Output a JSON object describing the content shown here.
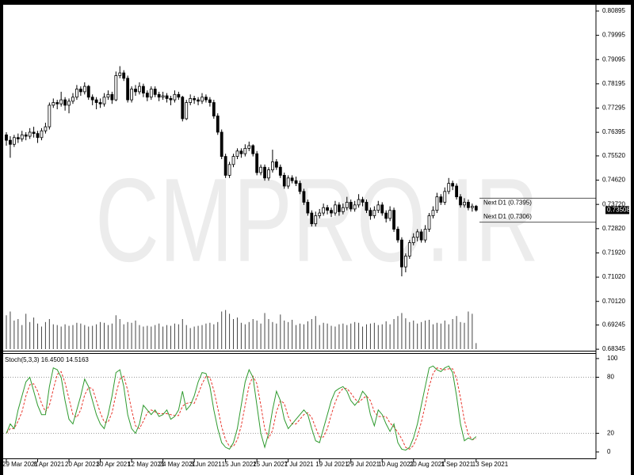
{
  "chart_data": [
    {
      "type": "candlestick",
      "watermark": "CMPRO.IR",
      "categories": [
        "29 Mar 2021",
        null,
        null,
        null,
        null,
        null,
        null,
        null,
        "8 Apr 2021",
        null,
        null,
        null,
        null,
        null,
        null,
        null,
        "20 Apr 2021",
        null,
        null,
        null,
        null,
        null,
        null,
        null,
        "30 Apr 2021",
        null,
        null,
        null,
        null,
        null,
        null,
        null,
        "12 May 2021",
        null,
        null,
        null,
        null,
        null,
        null,
        null,
        "24 May 2021",
        null,
        null,
        null,
        null,
        null,
        null,
        null,
        "3 Jun 2021",
        null,
        null,
        null,
        null,
        null,
        null,
        null,
        "15 Jun 2021",
        null,
        null,
        null,
        null,
        null,
        null,
        null,
        "25 Jun 2021",
        null,
        null,
        null,
        null,
        null,
        null,
        null,
        "7 Jul 2021",
        null,
        null,
        null,
        null,
        null,
        null,
        null,
        "19 Jul 2021",
        null,
        null,
        null,
        null,
        null,
        null,
        null,
        "29 Jul 2021",
        null,
        null,
        null,
        null,
        null,
        null,
        null,
        "10 Aug 2021",
        null,
        null,
        null,
        null,
        null,
        null,
        null,
        "20 Aug 2021",
        null,
        null,
        null,
        null,
        null,
        null,
        null,
        "1 Sep 2021",
        null,
        null,
        null,
        null,
        null,
        null,
        null,
        "13 Sep 2021"
      ],
      "candles": [
        [
          0.763,
          0.764,
          0.759,
          0.761
        ],
        [
          0.761,
          0.7625,
          0.7545,
          0.7595
        ],
        [
          0.7595,
          0.763,
          0.7585,
          0.762
        ],
        [
          0.762,
          0.7635,
          0.76,
          0.7615
        ],
        [
          0.7615,
          0.7645,
          0.7605,
          0.763
        ],
        [
          0.763,
          0.764,
          0.761,
          0.7625
        ],
        [
          0.7625,
          0.7655,
          0.7615,
          0.764
        ],
        [
          0.764,
          0.766,
          0.762,
          0.7635
        ],
        [
          0.7635,
          0.7645,
          0.76,
          0.762
        ],
        [
          0.762,
          0.7655,
          0.761,
          0.7645
        ],
        [
          0.7645,
          0.7675,
          0.7635,
          0.766
        ],
        [
          0.766,
          0.775,
          0.765,
          0.774
        ],
        [
          0.774,
          0.7765,
          0.773,
          0.775
        ],
        [
          0.775,
          0.776,
          0.7725,
          0.7745
        ],
        [
          0.7745,
          0.779,
          0.7735,
          0.776
        ],
        [
          0.776,
          0.777,
          0.772,
          0.774
        ],
        [
          0.774,
          0.7765,
          0.771,
          0.7755
        ],
        [
          0.7755,
          0.7785,
          0.7745,
          0.777
        ],
        [
          0.777,
          0.7815,
          0.776,
          0.78
        ],
        [
          0.78,
          0.781,
          0.7775,
          0.779
        ],
        [
          0.779,
          0.7825,
          0.778,
          0.781
        ],
        [
          0.781,
          0.7815,
          0.776,
          0.777
        ],
        [
          0.777,
          0.778,
          0.774,
          0.776
        ],
        [
          0.776,
          0.777,
          0.7725,
          0.775
        ],
        [
          0.775,
          0.7765,
          0.773,
          0.7745
        ],
        [
          0.7745,
          0.7785,
          0.7735,
          0.777
        ],
        [
          0.777,
          0.7795,
          0.776,
          0.778
        ],
        [
          0.778,
          0.779,
          0.7745,
          0.776
        ],
        [
          0.776,
          0.7865,
          0.7755,
          0.785
        ],
        [
          0.785,
          0.7885,
          0.784,
          0.786
        ],
        [
          0.786,
          0.787,
          0.783,
          0.784
        ],
        [
          0.784,
          0.785,
          0.775,
          0.776
        ],
        [
          0.776,
          0.781,
          0.775,
          0.78
        ],
        [
          0.78,
          0.7815,
          0.7775,
          0.779
        ],
        [
          0.779,
          0.7825,
          0.778,
          0.781
        ],
        [
          0.781,
          0.782,
          0.777,
          0.7785
        ],
        [
          0.7785,
          0.7795,
          0.7755,
          0.777
        ],
        [
          0.777,
          0.781,
          0.776,
          0.78
        ],
        [
          0.78,
          0.781,
          0.777,
          0.778
        ],
        [
          0.778,
          0.779,
          0.7755,
          0.777
        ],
        [
          0.777,
          0.779,
          0.776,
          0.7775
        ],
        [
          0.7775,
          0.7785,
          0.775,
          0.7765
        ],
        [
          0.7765,
          0.7775,
          0.774,
          0.776
        ],
        [
          0.776,
          0.7795,
          0.775,
          0.778
        ],
        [
          0.778,
          0.779,
          0.776,
          0.777
        ],
        [
          0.777,
          0.7775,
          0.768,
          0.769
        ],
        [
          0.769,
          0.776,
          0.7685,
          0.775
        ],
        [
          0.775,
          0.778,
          0.774,
          0.7765
        ],
        [
          0.7765,
          0.7775,
          0.7745,
          0.776
        ],
        [
          0.776,
          0.777,
          0.774,
          0.7755
        ],
        [
          0.7755,
          0.7785,
          0.7745,
          0.777
        ],
        [
          0.777,
          0.778,
          0.775,
          0.776
        ],
        [
          0.776,
          0.777,
          0.7735,
          0.775
        ],
        [
          0.775,
          0.776,
          0.769,
          0.77
        ],
        [
          0.77,
          0.771,
          0.763,
          0.764
        ],
        [
          0.764,
          0.765,
          0.754,
          0.755
        ],
        [
          0.755,
          0.756,
          0.747,
          0.748
        ],
        [
          0.748,
          0.753,
          0.747,
          0.752
        ],
        [
          0.752,
          0.756,
          0.751,
          0.755
        ],
        [
          0.755,
          0.758,
          0.754,
          0.757
        ],
        [
          0.757,
          0.758,
          0.7545,
          0.756
        ],
        [
          0.756,
          0.7595,
          0.755,
          0.758
        ],
        [
          0.758,
          0.7605,
          0.757,
          0.759
        ],
        [
          0.759,
          0.7595,
          0.755,
          0.756
        ],
        [
          0.756,
          0.757,
          0.748,
          0.749
        ],
        [
          0.749,
          0.752,
          0.748,
          0.751
        ],
        [
          0.751,
          0.752,
          0.746,
          0.747
        ],
        [
          0.747,
          0.751,
          0.746,
          0.75
        ],
        [
          0.75,
          0.7575,
          0.749,
          0.753
        ],
        [
          0.753,
          0.754,
          0.75,
          0.751
        ],
        [
          0.751,
          0.752,
          0.747,
          0.748
        ],
        [
          0.748,
          0.749,
          0.743,
          0.744
        ],
        [
          0.744,
          0.748,
          0.743,
          0.747
        ],
        [
          0.747,
          0.748,
          0.745,
          0.746
        ],
        [
          0.746,
          0.7475,
          0.744,
          0.745
        ],
        [
          0.745,
          0.746,
          0.741,
          0.742
        ],
        [
          0.742,
          0.743,
          0.737,
          0.738
        ],
        [
          0.738,
          0.739,
          0.733,
          0.734
        ],
        [
          0.734,
          0.735,
          0.729,
          0.73
        ],
        [
          0.73,
          0.7345,
          0.729,
          0.733
        ],
        [
          0.733,
          0.7355,
          0.732,
          0.734
        ],
        [
          0.734,
          0.7375,
          0.733,
          0.736
        ],
        [
          0.736,
          0.737,
          0.7335,
          0.735
        ],
        [
          0.735,
          0.736,
          0.7325,
          0.734
        ],
        [
          0.734,
          0.7385,
          0.733,
          0.737
        ],
        [
          0.737,
          0.738,
          0.733,
          0.7345
        ],
        [
          0.7345,
          0.7375,
          0.7335,
          0.736
        ],
        [
          0.736,
          0.74,
          0.735,
          0.738
        ],
        [
          0.738,
          0.739,
          0.7345,
          0.7355
        ],
        [
          0.7355,
          0.7385,
          0.7345,
          0.737
        ],
        [
          0.737,
          0.741,
          0.736,
          0.739
        ],
        [
          0.739,
          0.74,
          0.7365,
          0.738
        ],
        [
          0.738,
          0.739,
          0.734,
          0.735
        ],
        [
          0.735,
          0.736,
          0.7315,
          0.733
        ],
        [
          0.733,
          0.7365,
          0.732,
          0.735
        ],
        [
          0.735,
          0.7385,
          0.734,
          0.737
        ],
        [
          0.737,
          0.738,
          0.733,
          0.734
        ],
        [
          0.734,
          0.735,
          0.7305,
          0.732
        ],
        [
          0.732,
          0.7365,
          0.731,
          0.735
        ],
        [
          0.735,
          0.736,
          0.727,
          0.728
        ],
        [
          0.728,
          0.729,
          0.723,
          0.724
        ],
        [
          0.724,
          0.725,
          0.7105,
          0.714
        ],
        [
          0.714,
          0.719,
          0.712,
          0.718
        ],
        [
          0.718,
          0.724,
          0.717,
          0.723
        ],
        [
          0.723,
          0.7265,
          0.722,
          0.725
        ],
        [
          0.725,
          0.728,
          0.7235,
          0.727
        ],
        [
          0.727,
          0.728,
          0.723,
          0.724
        ],
        [
          0.724,
          0.7295,
          0.723,
          0.728
        ],
        [
          0.728,
          0.734,
          0.727,
          0.733
        ],
        [
          0.733,
          0.7365,
          0.732,
          0.735
        ],
        [
          0.735,
          0.7415,
          0.734,
          0.74
        ],
        [
          0.74,
          0.741,
          0.737,
          0.738
        ],
        [
          0.738,
          0.7435,
          0.737,
          0.742
        ],
        [
          0.742,
          0.747,
          0.741,
          0.745
        ],
        [
          0.745,
          0.746,
          0.7425,
          0.744
        ],
        [
          0.744,
          0.745,
          0.739,
          0.74
        ],
        [
          0.74,
          0.741,
          0.736,
          0.737
        ],
        [
          0.737,
          0.7395,
          0.736,
          0.738
        ],
        [
          0.738,
          0.739,
          0.735,
          0.736
        ],
        [
          0.736,
          0.7375,
          0.7345,
          0.7365
        ],
        [
          0.7365,
          0.737,
          0.7345,
          0.7351
        ]
      ],
      "volume": [
        45,
        50,
        38,
        40,
        32,
        47,
        36,
        42,
        34,
        30,
        36,
        40,
        33,
        32,
        30,
        33,
        31,
        32,
        35,
        34,
        32,
        30,
        31,
        33,
        36,
        35,
        32,
        34,
        45,
        40,
        33,
        36,
        35,
        38,
        32,
        30,
        31,
        30,
        32,
        34,
        30,
        32,
        31,
        34,
        33,
        40,
        32,
        28,
        30,
        31,
        32,
        34,
        35,
        33,
        36,
        50,
        52,
        47,
        40,
        42,
        35,
        33,
        36,
        40,
        38,
        34,
        48,
        40,
        36,
        34,
        46,
        38,
        36,
        39,
        32,
        34,
        33,
        37,
        40,
        44,
        32,
        35,
        34,
        31,
        30,
        33,
        34,
        32,
        34,
        36,
        35,
        30,
        33,
        34,
        35,
        32,
        33,
        37,
        33,
        40,
        44,
        48,
        41,
        36,
        38,
        34,
        36,
        38,
        39,
        33,
        35,
        34,
        38,
        33,
        40,
        44,
        36,
        35,
        50,
        47,
        8
      ],
      "ylim": [
        0.6829,
        0.8107
      ],
      "yticks": [
        0.80895,
        0.79995,
        0.79095,
        0.78195,
        0.77295,
        0.76395,
        {
          "value": 0.7552,
          "label": "0.75520"
        },
        {
          "value": 0.7462,
          "label": "0.74620"
        },
        {
          "value": 0.7372,
          "label": "0.73720"
        },
        {
          "value": 0.7282,
          "label": "0.72820"
        },
        {
          "value": 0.7192,
          "label": "0.71920"
        },
        {
          "value": 0.7102,
          "label": "0.71020"
        },
        {
          "value": 0.7012,
          "label": "0.70120"
        },
        0.69245,
        0.68345
      ],
      "current_price": 0.73508,
      "levels": [
        {
          "label": "Next D1 (0.7395)",
          "value": 0.7395
        },
        {
          "label": "Next D1 (0.7306)",
          "value": 0.7306
        }
      ],
      "up_color": "#ffffff",
      "down_color": "#000000"
    },
    {
      "type": "line",
      "title": "Stoch(5,3,3) 16.4500 14.5163",
      "series": [
        {
          "color": "#2e9a2e",
          "values": [
            20,
            30,
            25,
            45,
            60,
            75,
            80,
            65,
            50,
            40,
            40,
            70,
            90,
            88,
            80,
            55,
            35,
            30,
            45,
            60,
            78,
            70,
            55,
            40,
            30,
            25,
            40,
            60,
            85,
            88,
            70,
            40,
            25,
            20,
            30,
            50,
            45,
            40,
            45,
            38,
            40,
            45,
            35,
            38,
            45,
            65,
            45,
            50,
            60,
            75,
            85,
            84,
            70,
            45,
            25,
            10,
            5,
            3,
            10,
            25,
            50,
            75,
            88,
            80,
            50,
            20,
            5,
            20,
            45,
            65,
            55,
            35,
            25,
            30,
            35,
            40,
            45,
            40,
            25,
            12,
            10,
            25,
            40,
            55,
            65,
            68,
            70,
            65,
            55,
            50,
            55,
            65,
            60,
            40,
            28,
            45,
            40,
            30,
            22,
            30,
            10,
            3,
            2,
            5,
            15,
            30,
            50,
            70,
            90,
            92,
            88,
            86,
            90,
            92,
            85,
            60,
            30,
            12,
            15,
            13,
            16.45
          ]
        },
        {
          "color": "#e8362c",
          "dashed": true,
          "values": [
            20,
            25,
            25,
            33,
            43,
            60,
            72,
            73,
            65,
            52,
            43,
            50,
            67,
            83,
            86,
            74,
            57,
            40,
            37,
            45,
            61,
            69,
            68,
            55,
            42,
            32,
            32,
            42,
            62,
            78,
            81,
            66,
            45,
            28,
            25,
            33,
            42,
            45,
            43,
            41,
            41,
            41,
            40,
            39,
            39,
            49,
            52,
            53,
            52,
            62,
            73,
            81,
            80,
            66,
            47,
            27,
            13,
            6,
            6,
            13,
            28,
            50,
            71,
            81,
            73,
            50,
            25,
            15,
            23,
            43,
            55,
            52,
            38,
            30,
            30,
            35,
            40,
            42,
            37,
            26,
            16,
            16,
            25,
            40,
            53,
            63,
            68,
            68,
            63,
            57,
            53,
            57,
            60,
            55,
            43,
            38,
            38,
            38,
            31,
            27,
            21,
            14,
            5,
            3,
            7,
            17,
            32,
            50,
            70,
            84,
            90,
            89,
            88,
            89,
            89,
            79,
            58,
            34,
            19,
            13,
            14.5163
          ]
        }
      ],
      "ylim": [
        -6,
        105
      ],
      "yticks": [
        100,
        80,
        20,
        0
      ],
      "reference_lines": [
        80,
        20
      ]
    }
  ]
}
